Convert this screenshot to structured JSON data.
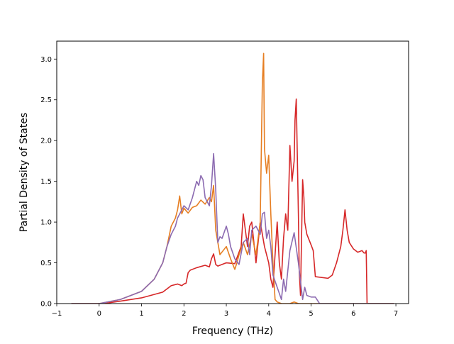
{
  "chart_data": {
    "type": "line",
    "title": "",
    "xlabel": "Frequency (THz)",
    "ylabel": "Partial Density of States",
    "xlim": [
      -1,
      7.3
    ],
    "ylim": [
      0,
      3.22
    ],
    "xticks": [
      -1,
      0,
      1,
      2,
      3,
      4,
      5,
      6,
      7
    ],
    "yticks": [
      0.0,
      0.5,
      1.0,
      1.5,
      2.0,
      2.5,
      3.0
    ],
    "xtick_labels": [
      "−1",
      "0",
      "1",
      "2",
      "3",
      "4",
      "5",
      "6",
      "7"
    ],
    "ytick_labels": [
      "0.0",
      "0.5",
      "1.0",
      "1.5",
      "2.0",
      "2.5",
      "3.0"
    ],
    "grid": false,
    "legend": "none",
    "series": [
      {
        "color": "#d62728",
        "x": [
          -0.65,
          0.1,
          0.5,
          1.0,
          1.5,
          1.7,
          1.85,
          1.95,
          2.0,
          2.05,
          2.1,
          2.15,
          2.3,
          2.5,
          2.6,
          2.65,
          2.7,
          2.75,
          2.8,
          3.0,
          3.2,
          3.35,
          3.4,
          3.45,
          3.5,
          3.55,
          3.6,
          3.65,
          3.7,
          3.8,
          3.9,
          4.0,
          4.05,
          4.1,
          4.15,
          4.2,
          4.25,
          4.3,
          4.35,
          4.4,
          4.45,
          4.5,
          4.55,
          4.6,
          4.62,
          4.65,
          4.7,
          4.72,
          4.75,
          4.8,
          4.83,
          4.85,
          4.9,
          5.0,
          5.05,
          5.1,
          5.4,
          5.5,
          5.6,
          5.7,
          5.75,
          5.8,
          5.85,
          5.9,
          6.0,
          6.1,
          6.2,
          6.25,
          6.28,
          6.3,
          6.32,
          6.95
        ],
        "y": [
          0.0,
          0.0,
          0.03,
          0.07,
          0.14,
          0.22,
          0.24,
          0.22,
          0.24,
          0.25,
          0.38,
          0.41,
          0.44,
          0.47,
          0.45,
          0.55,
          0.61,
          0.48,
          0.46,
          0.5,
          0.49,
          0.7,
          1.1,
          0.9,
          0.7,
          0.95,
          1.0,
          0.75,
          0.5,
          1.0,
          0.7,
          0.5,
          0.3,
          0.2,
          0.6,
          1.0,
          0.5,
          0.3,
          0.8,
          1.1,
          0.9,
          1.94,
          1.5,
          1.75,
          2.25,
          2.51,
          1.1,
          0.4,
          0.1,
          1.52,
          1.3,
          1.0,
          0.85,
          0.72,
          0.65,
          0.33,
          0.31,
          0.35,
          0.5,
          0.7,
          0.9,
          1.15,
          0.9,
          0.75,
          0.67,
          0.63,
          0.65,
          0.62,
          0.62,
          0.65,
          0.0,
          0.0
        ]
      },
      {
        "color": "#e67e22",
        "x": [
          -0.65,
          0.0,
          0.5,
          1.0,
          1.3,
          1.5,
          1.6,
          1.7,
          1.8,
          1.85,
          1.9,
          1.95,
          2.0,
          2.1,
          2.2,
          2.3,
          2.4,
          2.5,
          2.6,
          2.65,
          2.7,
          2.75,
          2.8,
          2.85,
          3.0,
          3.1,
          3.2,
          3.25,
          3.3,
          3.4,
          3.5,
          3.6,
          3.7,
          3.75,
          3.8,
          3.85,
          3.88,
          3.9,
          3.95,
          4.0,
          4.05,
          4.1,
          4.15,
          4.2,
          4.3,
          4.4,
          4.5,
          4.6,
          4.7,
          4.8,
          4.9,
          5.0,
          5.1,
          6.95
        ],
        "y": [
          0.0,
          0.0,
          0.05,
          0.15,
          0.3,
          0.5,
          0.7,
          0.95,
          1.05,
          1.15,
          1.32,
          1.1,
          1.17,
          1.11,
          1.18,
          1.2,
          1.27,
          1.22,
          1.3,
          1.25,
          1.45,
          0.9,
          0.75,
          0.6,
          0.7,
          0.55,
          0.42,
          0.5,
          0.6,
          0.75,
          0.6,
          0.85,
          0.6,
          0.8,
          1.0,
          2.7,
          3.07,
          1.9,
          1.6,
          1.82,
          1.1,
          0.5,
          0.05,
          0.02,
          0.0,
          0.0,
          0.0,
          0.02,
          0.0,
          0.0,
          0.0,
          0.0,
          0.0,
          0.0
        ]
      },
      {
        "color": "#8c6bb1",
        "x": [
          -0.65,
          0.0,
          0.5,
          1.0,
          1.3,
          1.5,
          1.6,
          1.7,
          1.8,
          1.85,
          1.9,
          2.0,
          2.1,
          2.2,
          2.3,
          2.35,
          2.4,
          2.45,
          2.5,
          2.6,
          2.65,
          2.7,
          2.75,
          2.8,
          2.85,
          2.9,
          3.0,
          3.05,
          3.1,
          3.2,
          3.3,
          3.4,
          3.5,
          3.55,
          3.6,
          3.7,
          3.8,
          3.85,
          3.9,
          3.95,
          4.0,
          4.05,
          4.1,
          4.2,
          4.3,
          4.35,
          4.4,
          4.5,
          4.6,
          4.7,
          4.8,
          4.85,
          4.9,
          5.0,
          5.1,
          5.2,
          6.0,
          6.95
        ],
        "y": [
          0.0,
          0.0,
          0.05,
          0.15,
          0.3,
          0.5,
          0.7,
          0.85,
          0.95,
          1.05,
          1.1,
          1.2,
          1.15,
          1.3,
          1.5,
          1.45,
          1.57,
          1.52,
          1.3,
          1.2,
          1.45,
          1.84,
          1.4,
          0.75,
          0.82,
          0.8,
          0.95,
          0.85,
          0.7,
          0.55,
          0.48,
          0.75,
          0.8,
          0.6,
          0.9,
          0.95,
          0.85,
          1.1,
          1.12,
          0.8,
          0.9,
          0.7,
          0.35,
          0.2,
          0.05,
          0.3,
          0.15,
          0.65,
          0.87,
          0.5,
          0.05,
          0.2,
          0.1,
          0.08,
          0.08,
          0.0,
          0.0,
          0.0
        ]
      }
    ]
  }
}
